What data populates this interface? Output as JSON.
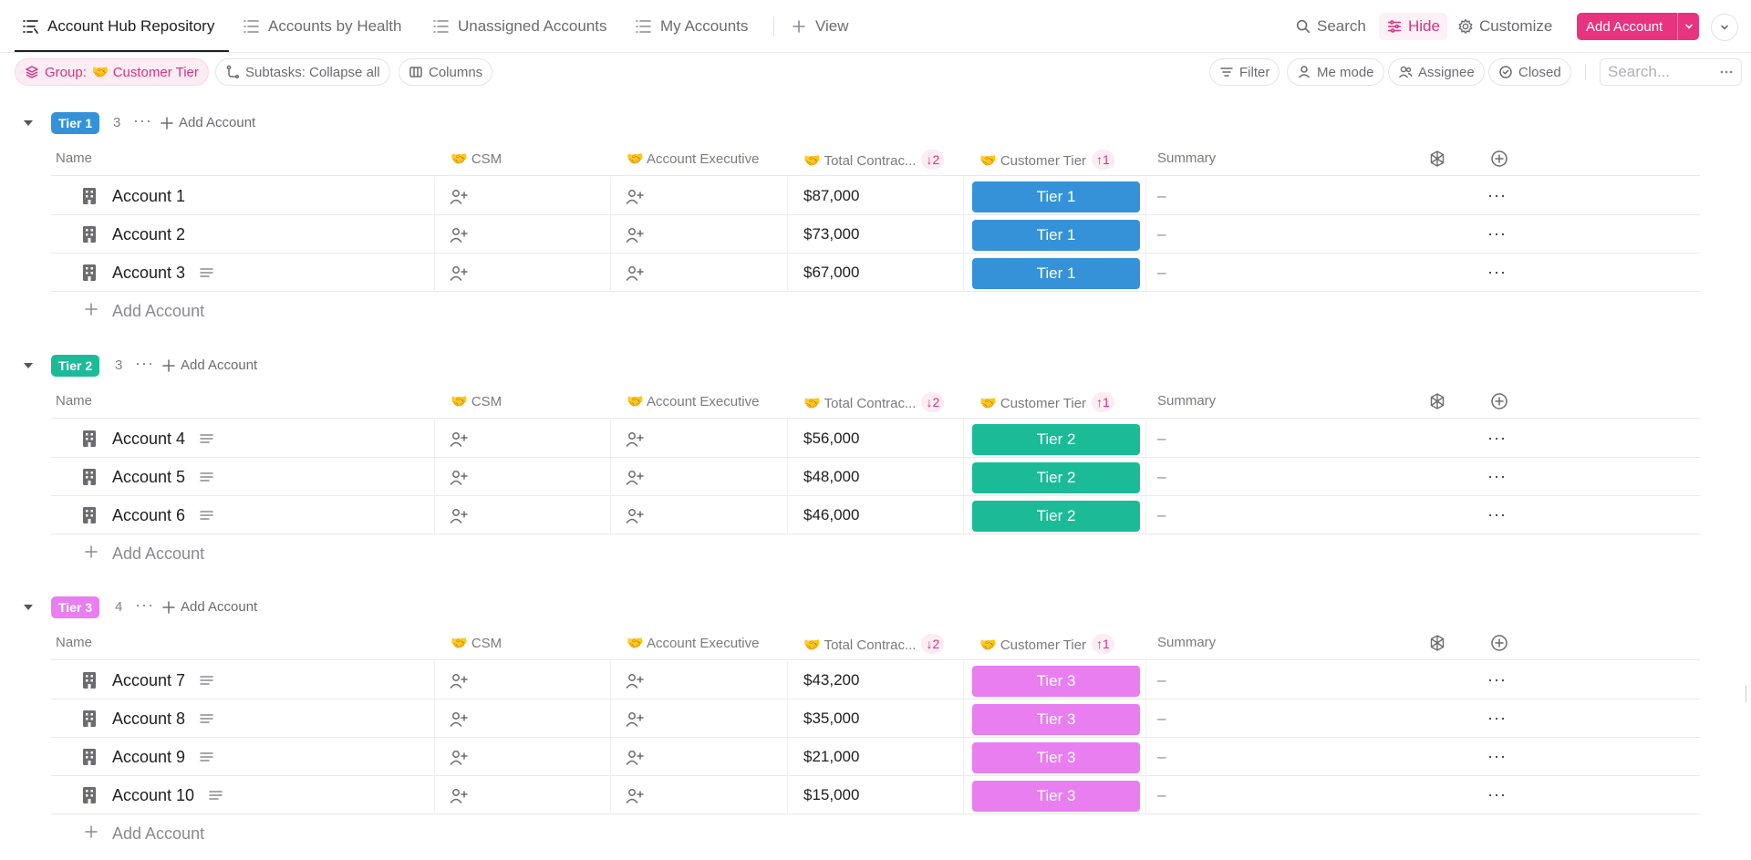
{
  "tabs": [
    {
      "label": "Account Hub Repository",
      "icon": "list-icon",
      "active": true
    },
    {
      "label": "Accounts by Health",
      "icon": "list-icon"
    },
    {
      "label": "Unassigned Accounts",
      "icon": "list-icon"
    },
    {
      "label": "My Accounts",
      "icon": "list-icon"
    },
    {
      "label": "View",
      "icon": "plus-icon"
    }
  ],
  "toolbar": {
    "search_label": "Search",
    "hide_label": "Hide",
    "customize_label": "Customize",
    "add_account_label": "Add Account"
  },
  "filters": {
    "group_prefix": "Group:",
    "group_value": "🤝 Customer Tier",
    "subtasks_label": "Subtasks: Collapse all",
    "columns_label": "Columns",
    "filter_label": "Filter",
    "me_mode_label": "Me mode",
    "assignee_label": "Assignee",
    "closed_label": "Closed",
    "search_placeholder": "Search..."
  },
  "columns": {
    "name": "Name",
    "csm": "🤝 CSM",
    "account_executive": "🤝 Account Executive",
    "total_contract": "🤝 Total Contrac...",
    "total_contract_sort": "↓2",
    "customer_tier": "🤝 Customer Tier",
    "customer_tier_sort": "↑1",
    "summary": "Summary"
  },
  "add_account_label": "Add Account",
  "groups": [
    {
      "badge": "Tier 1",
      "count": "3",
      "color": "#3592d9",
      "rows": [
        {
          "name": "Account 1",
          "amount": "$87,000",
          "tier": "Tier 1",
          "summary": "–",
          "has_desc": false
        },
        {
          "name": "Account 2",
          "amount": "$73,000",
          "tier": "Tier 1",
          "summary": "–",
          "has_desc": false
        },
        {
          "name": "Account 3",
          "amount": "$67,000",
          "tier": "Tier 1",
          "summary": "–",
          "has_desc": true
        }
      ]
    },
    {
      "badge": "Tier 2",
      "count": "3",
      "color": "#1cbb98",
      "rows": [
        {
          "name": "Account 4",
          "amount": "$56,000",
          "tier": "Tier 2",
          "summary": "–",
          "has_desc": true
        },
        {
          "name": "Account 5",
          "amount": "$48,000",
          "tier": "Tier 2",
          "summary": "–",
          "has_desc": true
        },
        {
          "name": "Account 6",
          "amount": "$46,000",
          "tier": "Tier 2",
          "summary": "–",
          "has_desc": true
        }
      ]
    },
    {
      "badge": "Tier 3",
      "count": "4",
      "color": "#e87ef0",
      "rows": [
        {
          "name": "Account 7",
          "amount": "$43,200",
          "tier": "Tier 3",
          "summary": "–",
          "has_desc": true
        },
        {
          "name": "Account 8",
          "amount": "$35,000",
          "tier": "Tier 3",
          "summary": "–",
          "has_desc": true
        },
        {
          "name": "Account 9",
          "amount": "$21,000",
          "tier": "Tier 3",
          "summary": "–",
          "has_desc": true
        },
        {
          "name": "Account 10",
          "amount": "$15,000",
          "tier": "Tier 3",
          "summary": "–",
          "has_desc": true
        }
      ]
    }
  ],
  "colors": {
    "accent": "#e8337f",
    "tier1": "#3592d9",
    "tier2": "#1cbb98",
    "tier3": "#e87ef0"
  }
}
